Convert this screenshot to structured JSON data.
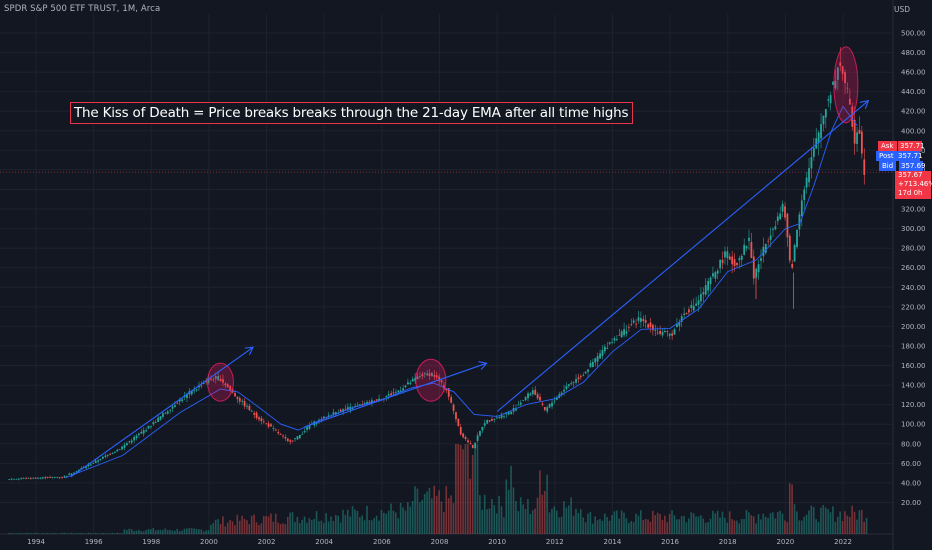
{
  "header": {
    "symbol_line": "SPDR S&P 500 ETF TRUST, 1M, Arca",
    "currency": "USD"
  },
  "annotation": {
    "text": "The Kiss of Death = Price breaks breaks through the 21-day EMA after all time highs"
  },
  "price_tags": {
    "ask_label": "Ask",
    "ask_value": "357.71",
    "post_label": "Post",
    "post_value": "357.71",
    "bid_label": "Bid",
    "bid_value": "357.69",
    "last_value": "357.67",
    "last_change": "+713.46%",
    "countdown": "17d 0h"
  },
  "colors": {
    "background": "#131722",
    "up": "#26a69a",
    "down": "#ef5350",
    "ema": "#2962ff",
    "trendline": "#2962ff",
    "highlight_circle": "#e91e63",
    "annotation_border": "#e8334a"
  },
  "chart_data": {
    "type": "candlestick",
    "interval": "1M",
    "xlabel": "",
    "ylabel": "",
    "x_range": [
      1993.0,
      2022.9
    ],
    "ylim": [
      0,
      520
    ],
    "x_ticks": [
      "1994",
      "1996",
      "1998",
      "2000",
      "2002",
      "2004",
      "2006",
      "2008",
      "2010",
      "2012",
      "2014",
      "2016",
      "2018",
      "2020",
      "2022"
    ],
    "y_ticks": [
      "20.00",
      "40.00",
      "60.00",
      "80.00",
      "100.00",
      "120.00",
      "140.00",
      "160.00",
      "180.00",
      "200.00",
      "220.00",
      "240.00",
      "260.00",
      "280.00",
      "300.00",
      "320.00",
      "340.00",
      "360.00",
      "380.00",
      "400.00",
      "420.00",
      "440.00",
      "460.00",
      "480.00",
      "500.00"
    ],
    "price_path": [
      [
        1993.0,
        44
      ],
      [
        1995.0,
        46
      ],
      [
        1996.0,
        60
      ],
      [
        1997.0,
        76
      ],
      [
        1998.0,
        98
      ],
      [
        1999.0,
        124
      ],
      [
        2000.0,
        145
      ],
      [
        2000.4,
        148
      ],
      [
        2001.0,
        128
      ],
      [
        2001.7,
        108
      ],
      [
        2002.5,
        90
      ],
      [
        2002.8,
        82
      ],
      [
        2003.1,
        86
      ],
      [
        2003.6,
        100
      ],
      [
        2004.5,
        113
      ],
      [
        2005.5,
        121
      ],
      [
        2006.5,
        132
      ],
      [
        2007.4,
        150
      ],
      [
        2007.8,
        152
      ],
      [
        2008.3,
        135
      ],
      [
        2008.8,
        90
      ],
      [
        2009.2,
        76
      ],
      [
        2009.6,
        102
      ],
      [
        2010.5,
        112
      ],
      [
        2011.3,
        135
      ],
      [
        2011.7,
        114
      ],
      [
        2012.5,
        140
      ],
      [
        2013.0,
        150
      ],
      [
        2014.0,
        185
      ],
      [
        2015.0,
        208
      ],
      [
        2015.7,
        193
      ],
      [
        2016.1,
        192
      ],
      [
        2016.5,
        212
      ],
      [
        2017.0,
        225
      ],
      [
        2018.0,
        275
      ],
      [
        2018.3,
        262
      ],
      [
        2018.8,
        290
      ],
      [
        2018.95,
        250
      ],
      [
        2019.5,
        295
      ],
      [
        2020.0,
        323
      ],
      [
        2020.25,
        255
      ],
      [
        2020.6,
        330
      ],
      [
        2021.0,
        375
      ],
      [
        2021.5,
        430
      ],
      [
        2021.95,
        470
      ],
      [
        2022.2,
        440
      ],
      [
        2022.45,
        390
      ],
      [
        2022.6,
        410
      ],
      [
        2022.75,
        360
      ]
    ],
    "ema_path": [
      [
        1995.0,
        45
      ],
      [
        1997.0,
        68
      ],
      [
        1999.0,
        112
      ],
      [
        2000.4,
        136
      ],
      [
        2001.0,
        133
      ],
      [
        2001.7,
        118
      ],
      [
        2002.5,
        100
      ],
      [
        2003.1,
        94
      ],
      [
        2004.0,
        106
      ],
      [
        2005.0,
        117
      ],
      [
        2006.0,
        125
      ],
      [
        2007.0,
        137
      ],
      [
        2007.8,
        142
      ],
      [
        2008.5,
        133
      ],
      [
        2009.2,
        110
      ],
      [
        2010.0,
        108
      ],
      [
        2011.0,
        120
      ],
      [
        2012.0,
        126
      ],
      [
        2013.0,
        143
      ],
      [
        2014.0,
        174
      ],
      [
        2015.0,
        197
      ],
      [
        2016.0,
        198
      ],
      [
        2017.0,
        218
      ],
      [
        2018.0,
        256
      ],
      [
        2019.0,
        268
      ],
      [
        2020.0,
        300
      ],
      [
        2020.5,
        305
      ],
      [
        2021.0,
        345
      ],
      [
        2021.6,
        400
      ],
      [
        2022.0,
        425
      ],
      [
        2022.5,
        405
      ]
    ],
    "trendlines": [
      {
        "from": [
          1995.2,
          46
        ],
        "to": [
          2001.5,
          178
        ]
      },
      {
        "from": [
          2003.3,
          97
        ],
        "to": [
          2009.6,
          162
        ]
      },
      {
        "from": [
          2010.0,
          113
        ],
        "to": [
          2022.85,
          430
        ]
      }
    ],
    "highlights": [
      {
        "center": [
          2000.4,
          143
        ]
      },
      {
        "center": [
          2007.7,
          145
        ]
      },
      {
        "center": [
          2022.1,
          447
        ]
      }
    ],
    "last_price": 357.67,
    "volume_note": "volume histogram shown at the bottom"
  }
}
